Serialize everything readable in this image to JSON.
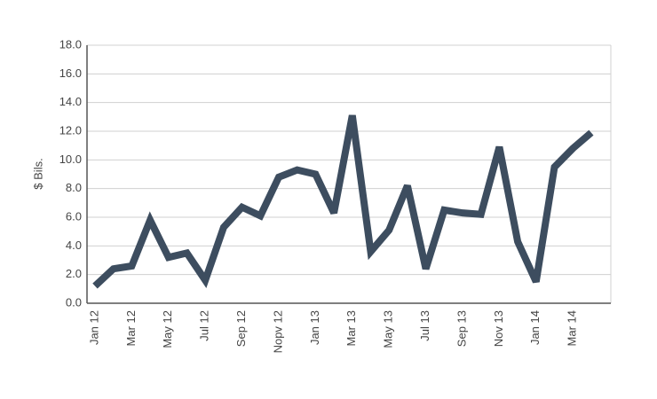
{
  "chart_data": {
    "type": "line",
    "y_label": "$ Bils.",
    "categories": [
      "Jan 12",
      null,
      "Mar 12",
      null,
      "May 12",
      null,
      "Jul 12",
      null,
      "Sep 12",
      null,
      "Nopv 12",
      null,
      "Jan 13",
      null,
      "Mar 13",
      null,
      "May 13",
      null,
      "Jul 13",
      null,
      "Sep 13",
      null,
      "Nov 13",
      null,
      "Jan 14",
      null,
      "Mar 14",
      null
    ],
    "series": [
      {
        "color": "#3d4d5f",
        "values": [
          1.2,
          2.4,
          2.6,
          5.8,
          3.2,
          3.5,
          1.6,
          5.3,
          6.7,
          6.1,
          8.8,
          9.3,
          9.0,
          6.3,
          13.1,
          3.6,
          5.1,
          8.2,
          2.4,
          6.5,
          6.3,
          6.2,
          10.9,
          4.3,
          1.5,
          9.5,
          10.8,
          11.9
        ]
      }
    ],
    "ylim": [
      0,
      18
    ],
    "yticks": [
      {
        "value": 0,
        "label": "0.0"
      },
      {
        "value": 2,
        "label": "2.0"
      },
      {
        "value": 4,
        "label": "4.0"
      },
      {
        "value": 6,
        "label": "6.0"
      },
      {
        "value": 8,
        "label": "8.0"
      },
      {
        "value": 10,
        "label": "10.0"
      },
      {
        "value": 12,
        "label": "12.0"
      },
      {
        "value": 14,
        "label": "14.0"
      },
      {
        "value": 16,
        "label": "16.0"
      },
      {
        "value": 18,
        "label": "18.0"
      }
    ],
    "grid": true
  }
}
